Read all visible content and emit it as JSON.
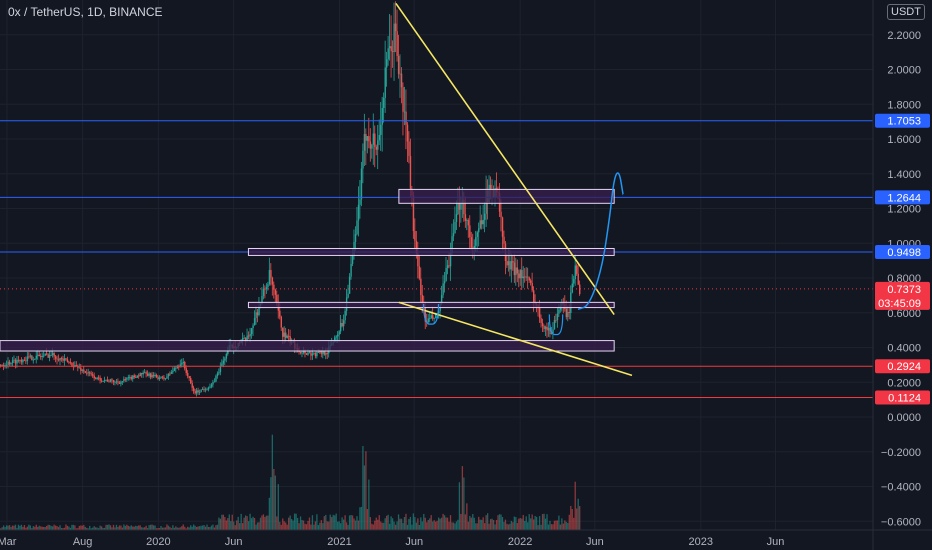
{
  "header": {
    "title": "0x / TetherUS, 1D, BINANCE",
    "unit": "USDT"
  },
  "colors": {
    "background": "#131722",
    "grid": "#1e222d",
    "axis_text": "#b2b5be",
    "up": "#26a69a",
    "down": "#ef5350",
    "trendline": "#f5e663",
    "zone_fill": "#3a1f4d",
    "zone_stroke": "#e6d6f5",
    "support_line": "#2962ff",
    "red_line": "#ef3b3b",
    "projection": "#2196f3",
    "current_price": "#f23645"
  },
  "chart_data": {
    "type": "candlestick",
    "title": "0x / TetherUS, 1D, BINANCE",
    "ylim": [
      -0.65,
      2.4
    ],
    "y_ticks": [
      "2.2000",
      "2.0000",
      "1.8000",
      "1.6000",
      "1.4000",
      "1.2000",
      "1.0000",
      "0.8000",
      "0.6000",
      "0.4000",
      "0.2000",
      "0.0000",
      "−0.2000",
      "−0.4000",
      "−0.6000"
    ],
    "y_tick_values": [
      2.2,
      2.0,
      1.8,
      1.6,
      1.4,
      1.2,
      1.0,
      0.8,
      0.6,
      0.4,
      0.2,
      0.0,
      -0.2,
      -0.4,
      -0.6
    ],
    "x_ticks": [
      {
        "label": "Mar",
        "date": "2019-03-01"
      },
      {
        "label": "Aug",
        "date": "2019-08-01"
      },
      {
        "label": "2020",
        "date": "2020-01-01"
      },
      {
        "label": "Jun",
        "date": "2020-06-01"
      },
      {
        "label": "2021",
        "date": "2021-01-01"
      },
      {
        "label": "Jun",
        "date": "2021-06-01"
      },
      {
        "label": "2022",
        "date": "2022-01-01"
      },
      {
        "label": "Jun",
        "date": "2022-06-01"
      },
      {
        "label": "2023",
        "date": "2023-01-01"
      },
      {
        "label": "Jun",
        "date": "2023-06-01"
      }
    ],
    "xlim": [
      "2019-02-15",
      "2023-12-15"
    ],
    "price_path": [
      [
        "2019-02-15",
        0.3
      ],
      [
        "2019-04-15",
        0.34
      ],
      [
        "2019-06-01",
        0.36
      ],
      [
        "2019-07-15",
        0.3
      ],
      [
        "2019-09-01",
        0.22
      ],
      [
        "2019-10-15",
        0.2
      ],
      [
        "2019-12-01",
        0.25
      ],
      [
        "2020-01-15",
        0.22
      ],
      [
        "2020-02-20",
        0.32
      ],
      [
        "2020-03-15",
        0.14
      ],
      [
        "2020-04-20",
        0.18
      ],
      [
        "2020-05-25",
        0.4
      ],
      [
        "2020-07-01",
        0.45
      ],
      [
        "2020-08-15",
        0.82
      ],
      [
        "2020-09-10",
        0.48
      ],
      [
        "2020-10-15",
        0.38
      ],
      [
        "2020-11-15",
        0.36
      ],
      [
        "2020-12-10",
        0.38
      ],
      [
        "2021-01-10",
        0.55
      ],
      [
        "2021-02-05",
        1.05
      ],
      [
        "2021-02-25",
        1.65
      ],
      [
        "2021-03-20",
        1.55
      ],
      [
        "2021-04-10",
        2.05
      ],
      [
        "2021-04-25",
        2.22
      ],
      [
        "2021-05-08",
        1.85
      ],
      [
        "2021-05-20",
        1.6
      ],
      [
        "2021-06-05",
        0.95
      ],
      [
        "2021-06-25",
        0.55
      ],
      [
        "2021-07-20",
        0.58
      ],
      [
        "2021-08-15",
        0.95
      ],
      [
        "2021-09-05",
        1.28
      ],
      [
        "2021-10-01",
        0.95
      ],
      [
        "2021-10-25",
        1.25
      ],
      [
        "2021-11-15",
        1.35
      ],
      [
        "2021-12-05",
        0.88
      ],
      [
        "2021-12-25",
        0.85
      ],
      [
        "2022-01-20",
        0.78
      ],
      [
        "2022-02-15",
        0.55
      ],
      [
        "2022-03-05",
        0.48
      ],
      [
        "2022-03-25",
        0.65
      ],
      [
        "2022-04-10",
        0.58
      ],
      [
        "2022-04-25",
        0.9
      ],
      [
        "2022-05-02",
        0.74
      ]
    ],
    "volume_peaks": [
      {
        "date": "2020-08-20",
        "value": 0.9
      },
      {
        "date": "2021-02-20",
        "value": 1.0
      },
      {
        "date": "2021-09-05",
        "value": 0.55
      },
      {
        "date": "2022-04-20",
        "value": 0.45
      }
    ],
    "price_labels": [
      {
        "value": 1.7053,
        "text": "1.7053",
        "kind": "blue"
      },
      {
        "value": 1.2644,
        "text": "1.2644",
        "kind": "blue"
      },
      {
        "value": 0.9498,
        "text": "0.9498",
        "kind": "blue"
      },
      {
        "value": 0.7373,
        "text": "0.7373",
        "kind": "current",
        "countdown": "03:45:09"
      },
      {
        "value": 0.2924,
        "text": "0.2924",
        "kind": "red"
      },
      {
        "value": 0.1124,
        "text": "0.1124",
        "kind": "red"
      }
    ],
    "horizontal_lines": [
      {
        "value": 1.7053,
        "kind": "blue"
      },
      {
        "value": 1.2644,
        "kind": "blue"
      },
      {
        "value": 0.9498,
        "kind": "blue"
      },
      {
        "value": 0.2924,
        "kind": "red"
      },
      {
        "value": 0.1124,
        "kind": "red"
      }
    ],
    "zones": [
      {
        "from": "2021-05-01",
        "to": "2022-07-10",
        "low": 1.23,
        "high": 1.31
      },
      {
        "from": "2020-07-01",
        "to": "2022-07-10",
        "low": 0.93,
        "high": 0.97
      },
      {
        "from": "2020-07-01",
        "to": "2022-07-10",
        "low": 0.63,
        "high": 0.66
      },
      {
        "from": "2019-02-15",
        "to": "2022-07-10",
        "low": 0.38,
        "high": 0.44
      }
    ],
    "trendlines": [
      {
        "from": [
          "2021-04-25",
          2.38
        ],
        "to": [
          "2022-07-10",
          0.59
        ]
      },
      {
        "from": [
          "2021-05-01",
          0.66
        ],
        "to": [
          "2022-08-15",
          0.24
        ]
      }
    ],
    "projection": [
      [
        "2022-04-28",
        0.62
      ],
      [
        "2022-05-20",
        0.64
      ],
      [
        "2022-06-15",
        0.85
      ],
      [
        "2022-07-01",
        1.15
      ],
      [
        "2022-07-10",
        1.38
      ],
      [
        "2022-07-20",
        1.42
      ],
      [
        "2022-07-28",
        1.28
      ]
    ]
  }
}
